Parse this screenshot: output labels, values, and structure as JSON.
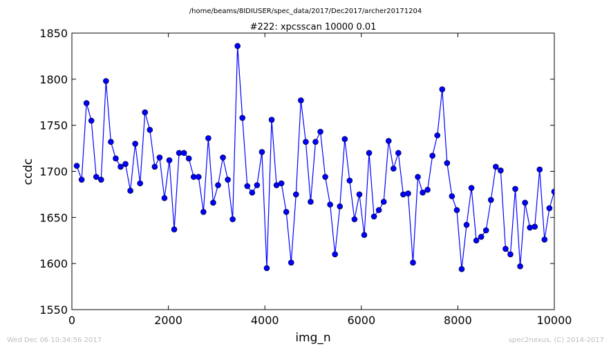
{
  "page": {
    "footer_left": "Wed Dec 06 10:34:56 2017",
    "footer_right": "spec2nexus, (C) 2014-2017"
  },
  "chart_data": {
    "type": "line",
    "suptitle": "/home/beams/8IDIUSER/spec_data/2017/Dec2017/archer20171204",
    "title": "#222: xpcsscan 10000 0.01",
    "xlabel": "img_n",
    "ylabel": "ccdc",
    "xlim": [
      0,
      10000
    ],
    "ylim": [
      1550,
      1850
    ],
    "xticks": [
      0,
      2000,
      4000,
      6000,
      8000,
      10000
    ],
    "yticks": [
      1550,
      1600,
      1650,
      1700,
      1750,
      1800,
      1850
    ],
    "grid": false,
    "legend": false,
    "marker": "circle",
    "line_color": "#0000ff",
    "marker_color": "#0000ff",
    "series": [
      {
        "x": [
          101,
          202,
          303,
          404,
          505,
          606,
          707,
          808,
          909,
          1010,
          1111,
          1212,
          1313,
          1414,
          1515,
          1616,
          1717,
          1818,
          1919,
          2020,
          2121,
          2222,
          2323,
          2424,
          2525,
          2626,
          2727,
          2828,
          2929,
          3030,
          3131,
          3232,
          3333,
          3434,
          3535,
          3636,
          3737,
          3838,
          3939,
          4040,
          4141,
          4242,
          4343,
          4444,
          4545,
          4646,
          4747,
          4848,
          4949,
          5050,
          5151,
          5252,
          5353,
          5454,
          5555,
          5656,
          5757,
          5858,
          5959,
          6060,
          6161,
          6262,
          6363,
          6464,
          6565,
          6666,
          6767,
          6868,
          6969,
          7070,
          7171,
          7272,
          7373,
          7474,
          7575,
          7676,
          7777,
          7878,
          7979,
          8080,
          8181,
          8282,
          8383,
          8484,
          8585,
          8686,
          8787,
          8888,
          8989,
          9090,
          9191,
          9292,
          9393,
          9494,
          9595,
          9696,
          9797,
          9898,
          9999
        ],
        "y": [
          1706,
          1691,
          1774,
          1755,
          1694,
          1691,
          1798,
          1732,
          1714,
          1705,
          1708,
          1679,
          1730,
          1687,
          1764,
          1745,
          1705,
          1715,
          1671,
          1712,
          1637,
          1720,
          1720,
          1714,
          1694,
          1694,
          1656,
          1736,
          1666,
          1685,
          1715,
          1691,
          1648,
          1836,
          1758,
          1684,
          1677,
          1685,
          1721,
          1595,
          1756,
          1685,
          1687,
          1656,
          1601,
          1675,
          1777,
          1732,
          1667,
          1732,
          1743,
          1694,
          1664,
          1610,
          1662,
          1735,
          1690,
          1648,
          1675,
          1631,
          1720,
          1651,
          1658,
          1667,
          1733,
          1703,
          1720,
          1675,
          1676,
          1601,
          1694,
          1677,
          1680,
          1717,
          1739,
          1789,
          1709,
          1673,
          1658,
          1594,
          1642,
          1682,
          1625,
          1629,
          1636,
          1669,
          1705,
          1701,
          1616,
          1610,
          1681,
          1597,
          1666,
          1639,
          1640,
          1702,
          1626,
          1660,
          1678
        ]
      }
    ]
  }
}
